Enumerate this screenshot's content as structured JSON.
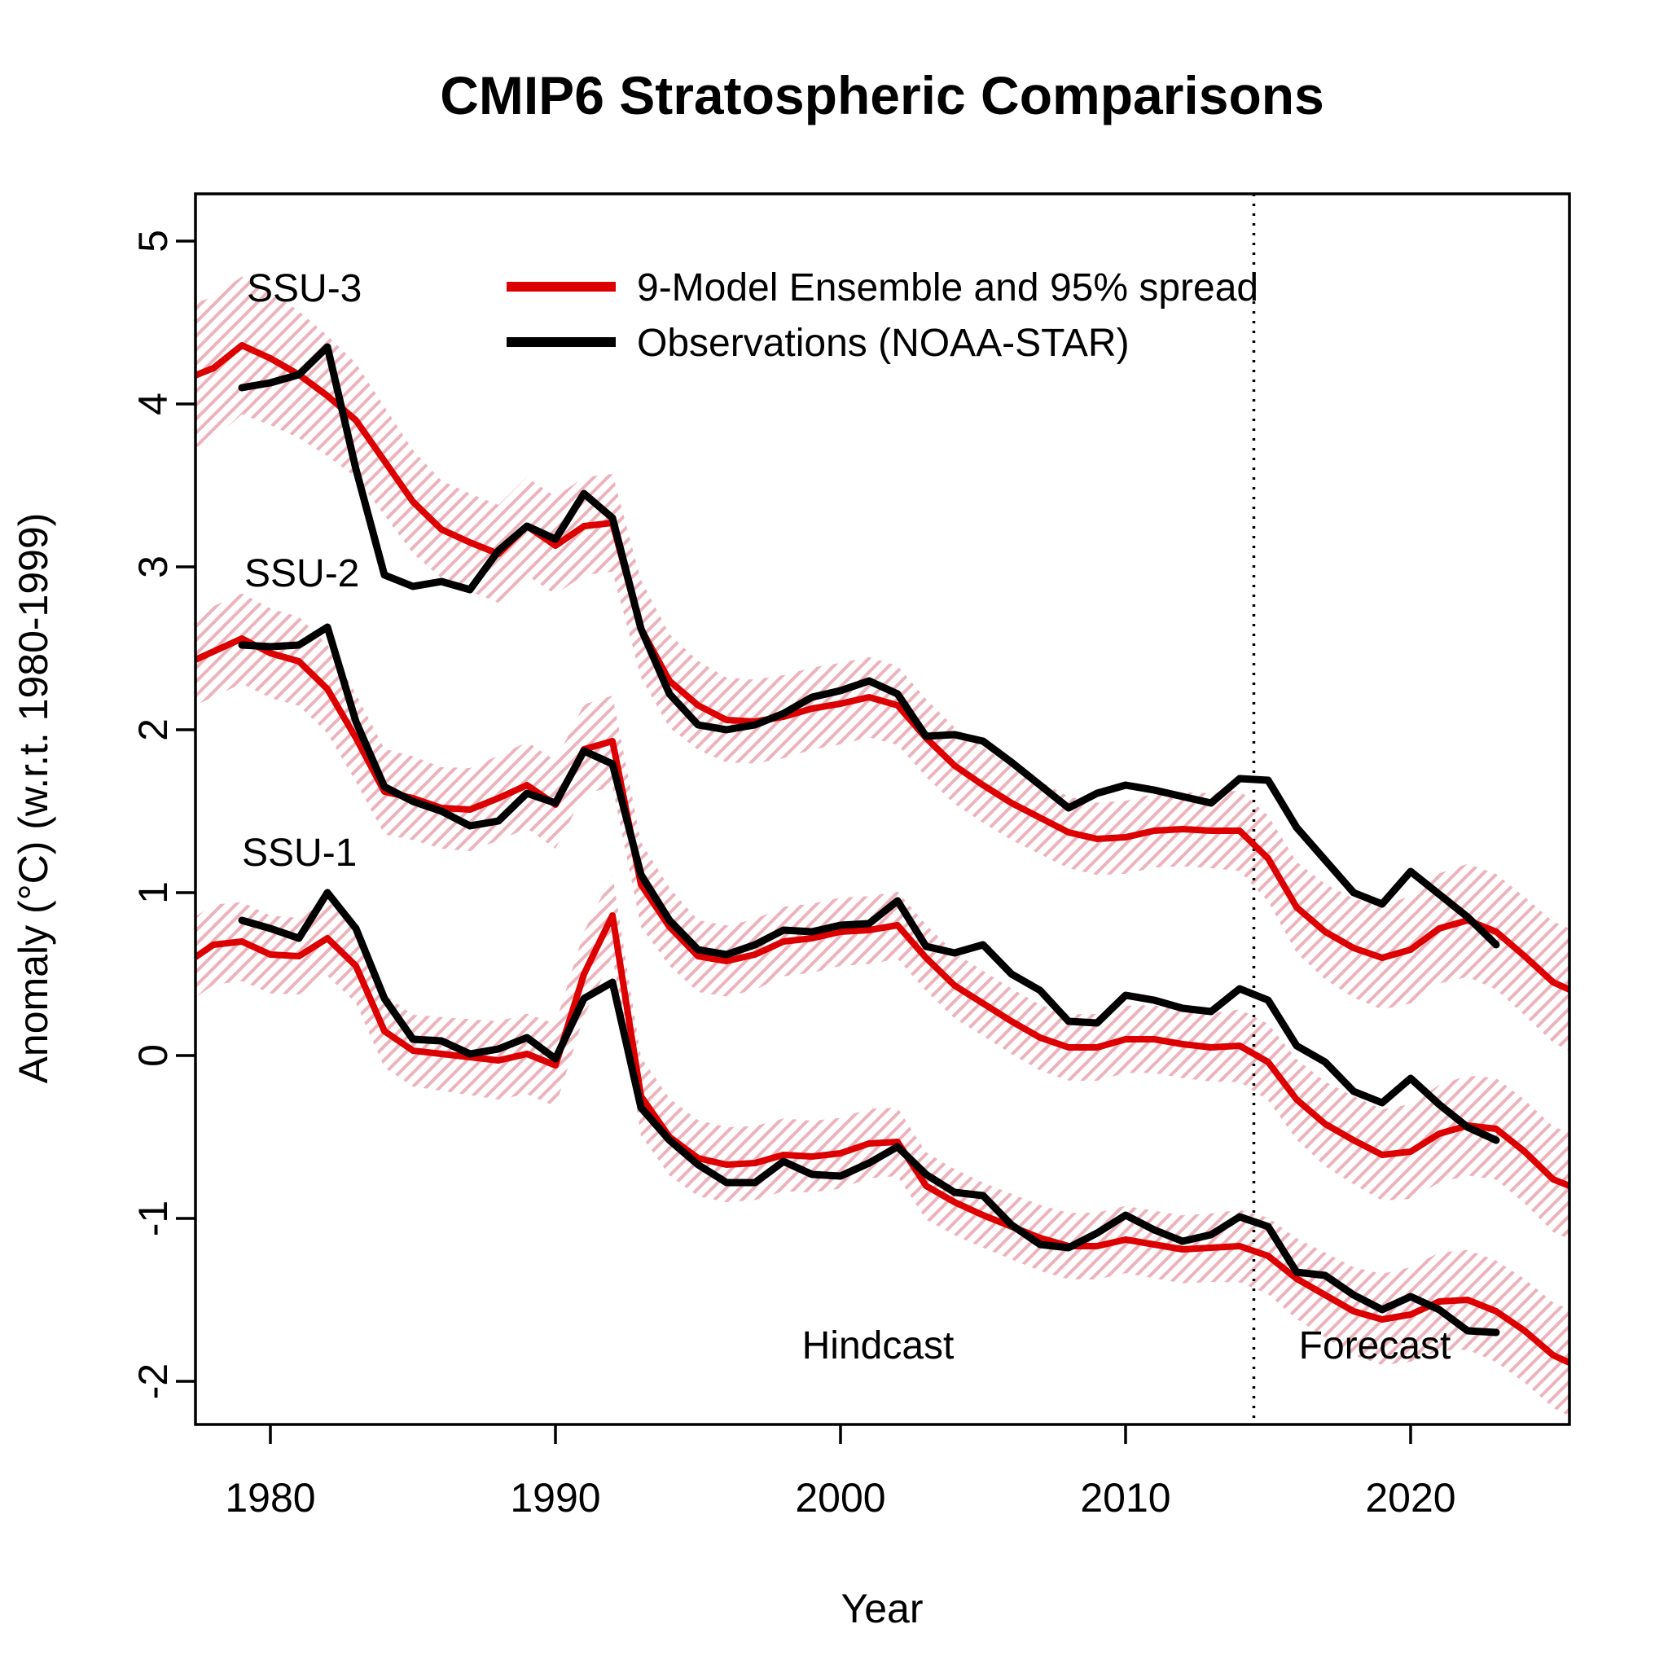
{
  "title": "CMIP6 Stratospheric Comparisons",
  "axes": {
    "x_label": "Year",
    "y_label": "Anomaly (°C) (w.r.t. 1980-1999)",
    "x_ticks": [
      1980,
      1990,
      2000,
      2010,
      2020
    ],
    "y_ticks": [
      5,
      4,
      3,
      2,
      1,
      0,
      -1,
      -2
    ],
    "x_range_years": [
      1977.35,
      2025.6
    ],
    "y_range": [
      -2.26,
      5.29
    ]
  },
  "legend": [
    {
      "label": "9-Model Ensemble and 95% spread",
      "color": "#dd0000"
    },
    {
      "label": "Observations (NOAA-STAR)",
      "color": "#000000"
    }
  ],
  "region_labels": {
    "hindcast": "Hindcast",
    "forecast": "Forecast"
  },
  "dashed_line_year": 2014.5,
  "colors": {
    "ensemble": "#dd0000",
    "observations": "#000000",
    "band_hatch": "#edb3bc",
    "frame": "#000000"
  },
  "chart_data": {
    "type": "line",
    "title": "CMIP6 Stratospheric Comparisons",
    "xlabel": "Year",
    "ylabel": "Anomaly (°C) (w.r.t. 1980-1999)",
    "legend_position": "top-center-inside",
    "grid": false,
    "ensemble_years": [
      1977,
      1978,
      1979,
      1980,
      1981,
      1982,
      1983,
      1984,
      1985,
      1986,
      1987,
      1988,
      1989,
      1990,
      1991,
      1992,
      1993,
      1994,
      1995,
      1996,
      1997,
      1998,
      1999,
      2000,
      2001,
      2002,
      2003,
      2004,
      2005,
      2006,
      2007,
      2008,
      2009,
      2010,
      2011,
      2012,
      2013,
      2014,
      2015,
      2016,
      2017,
      2018,
      2019,
      2020,
      2021,
      2022,
      2023,
      2024,
      2025,
      2026
    ],
    "obs_years": [
      1979,
      1980,
      1981,
      1982,
      1983,
      1984,
      1985,
      1986,
      1987,
      1988,
      1989,
      1990,
      1991,
      1992,
      1993,
      1994,
      1995,
      1996,
      1997,
      1998,
      1999,
      2000,
      2001,
      2002,
      2003,
      2004,
      2005,
      2006,
      2007,
      2008,
      2009,
      2010,
      2011,
      2012,
      2013,
      2014,
      2015,
      2016,
      2017,
      2018,
      2019,
      2020,
      2021,
      2022,
      2023
    ],
    "series": [
      {
        "name": "SSU-3",
        "label": "SSU-3",
        "ensemble": [
          4.15,
          4.22,
          4.36,
          4.28,
          4.18,
          4.05,
          3.9,
          3.65,
          3.4,
          3.23,
          3.15,
          3.08,
          3.25,
          3.13,
          3.25,
          3.27,
          2.62,
          2.3,
          2.15,
          2.06,
          2.05,
          2.08,
          2.13,
          2.16,
          2.2,
          2.15,
          1.95,
          1.78,
          1.66,
          1.55,
          1.46,
          1.37,
          1.33,
          1.34,
          1.38,
          1.39,
          1.38,
          1.38,
          1.21,
          0.91,
          0.76,
          0.66,
          0.6,
          0.65,
          0.78,
          0.83,
          0.76,
          0.61,
          0.45,
          0.37
        ],
        "observations": [
          4.1,
          4.13,
          4.18,
          4.35,
          3.6,
          2.95,
          2.88,
          2.91,
          2.86,
          3.1,
          3.25,
          3.17,
          3.45,
          3.3,
          2.62,
          2.22,
          2.03,
          2.0,
          2.03,
          2.1,
          2.2,
          2.24,
          2.3,
          2.22,
          1.96,
          1.97,
          1.93,
          1.8,
          1.66,
          1.52,
          1.61,
          1.66,
          1.63,
          1.59,
          1.55,
          1.7,
          1.69,
          1.4,
          1.2,
          1.0,
          0.93,
          1.13,
          0.99,
          0.85,
          0.68
        ],
        "band_halfwidth_points": [
          [
            1977,
            0.45
          ],
          [
            1980,
            0.41
          ],
          [
            1983,
            0.35
          ],
          [
            1986,
            0.3
          ],
          [
            1993,
            0.3
          ],
          [
            1996,
            0.26
          ],
          [
            2000,
            0.25
          ],
          [
            2008,
            0.22
          ],
          [
            2013,
            0.23
          ],
          [
            2016,
            0.28
          ],
          [
            2020,
            0.33
          ],
          [
            2026,
            0.38
          ]
        ]
      },
      {
        "name": "SSU-2",
        "label": "SSU-2",
        "ensemble": [
          2.4,
          2.48,
          2.56,
          2.47,
          2.42,
          2.25,
          1.95,
          1.62,
          1.58,
          1.52,
          1.51,
          1.58,
          1.66,
          1.54,
          1.88,
          1.93,
          1.05,
          0.79,
          0.61,
          0.58,
          0.62,
          0.7,
          0.72,
          0.76,
          0.77,
          0.8,
          0.6,
          0.43,
          0.32,
          0.21,
          0.11,
          0.05,
          0.05,
          0.1,
          0.1,
          0.07,
          0.05,
          0.06,
          -0.04,
          -0.27,
          -0.42,
          -0.52,
          -0.61,
          -0.59,
          -0.48,
          -0.43,
          -0.45,
          -0.59,
          -0.76,
          -0.83
        ],
        "observations": [
          2.52,
          2.51,
          2.52,
          2.63,
          2.05,
          1.65,
          1.56,
          1.5,
          1.41,
          1.44,
          1.61,
          1.55,
          1.87,
          1.79,
          1.11,
          0.83,
          0.65,
          0.62,
          0.68,
          0.77,
          0.76,
          0.8,
          0.81,
          0.95,
          0.67,
          0.63,
          0.68,
          0.5,
          0.4,
          0.21,
          0.2,
          0.37,
          0.34,
          0.29,
          0.27,
          0.41,
          0.34,
          0.06,
          -0.04,
          -0.22,
          -0.29,
          -0.14,
          -0.3,
          -0.44,
          -0.52
        ],
        "band_halfwidth_points": [
          [
            1977,
            0.28
          ],
          [
            1983,
            0.27
          ],
          [
            1986,
            0.25
          ],
          [
            1992,
            0.28
          ],
          [
            1995,
            0.22
          ],
          [
            2005,
            0.2
          ],
          [
            2013,
            0.21
          ],
          [
            2017,
            0.26
          ],
          [
            2021,
            0.3
          ],
          [
            2026,
            0.33
          ]
        ]
      },
      {
        "name": "SSU-1",
        "label": "SSU-1",
        "ensemble": [
          0.56,
          0.68,
          0.7,
          0.62,
          0.61,
          0.72,
          0.55,
          0.15,
          0.03,
          0.01,
          -0.01,
          -0.03,
          0.01,
          -0.06,
          0.5,
          0.86,
          -0.25,
          -0.5,
          -0.63,
          -0.67,
          -0.66,
          -0.61,
          -0.62,
          -0.6,
          -0.54,
          -0.53,
          -0.8,
          -0.9,
          -0.98,
          -1.05,
          -1.12,
          -1.17,
          -1.17,
          -1.13,
          -1.16,
          -1.19,
          -1.18,
          -1.17,
          -1.23,
          -1.37,
          -1.47,
          -1.57,
          -1.62,
          -1.59,
          -1.51,
          -1.5,
          -1.57,
          -1.69,
          -1.84,
          -1.92
        ],
        "observations": [
          0.83,
          0.78,
          0.72,
          1.0,
          0.78,
          0.35,
          0.1,
          0.09,
          0.01,
          0.04,
          0.11,
          -0.02,
          0.35,
          0.45,
          -0.32,
          -0.52,
          -0.67,
          -0.78,
          -0.78,
          -0.65,
          -0.73,
          -0.74,
          -0.66,
          -0.56,
          -0.73,
          -0.84,
          -0.86,
          -1.04,
          -1.16,
          -1.18,
          -1.09,
          -0.98,
          -1.07,
          -1.14,
          -1.1,
          -0.99,
          -1.05,
          -1.33,
          -1.35,
          -1.47,
          -1.56,
          -1.48,
          -1.56,
          -1.69,
          -1.7
        ],
        "band_halfwidth_points": [
          [
            1977,
            0.25
          ],
          [
            1985,
            0.22
          ],
          [
            1991,
            0.26
          ],
          [
            1993,
            0.24
          ],
          [
            2005,
            0.2
          ],
          [
            2013,
            0.21
          ],
          [
            2017,
            0.26
          ],
          [
            2021,
            0.3
          ],
          [
            2026,
            0.33
          ]
        ]
      }
    ]
  }
}
